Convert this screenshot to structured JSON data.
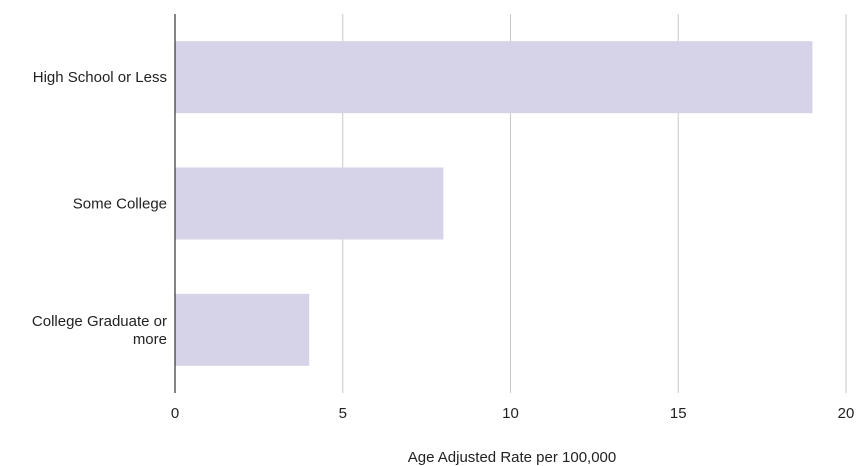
{
  "chart_data": {
    "type": "bar",
    "orientation": "horizontal",
    "categories": [
      [
        "High School or Less"
      ],
      [
        "Some College"
      ],
      [
        "College Graduate or",
        "more"
      ]
    ],
    "values": [
      19,
      8,
      4
    ],
    "xlabel": "Age Adjusted Rate per 100,000",
    "ylabel": "",
    "xlim": [
      0,
      20
    ],
    "xticks": [
      0,
      5,
      10,
      15,
      20
    ],
    "grid": true,
    "legend": "none",
    "bar_color": "#d6d2e7"
  }
}
